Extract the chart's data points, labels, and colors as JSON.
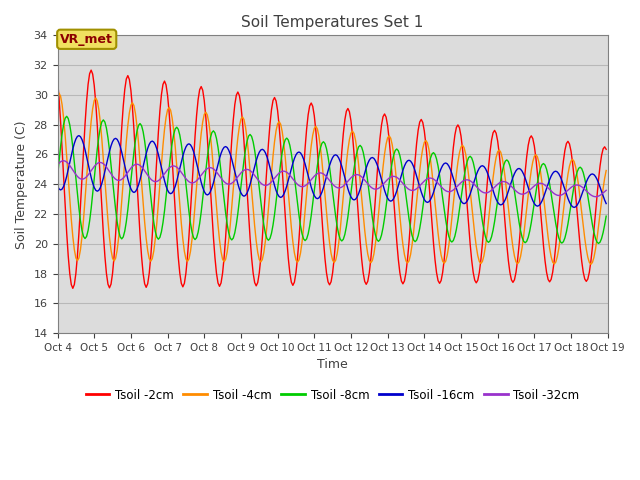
{
  "title": "Soil Temperatures Set 1",
  "xlabel": "Time",
  "ylabel": "Soil Temperature (C)",
  "ylim": [
    14,
    34
  ],
  "background_color": "#dcdcdc",
  "figure_color": "#ffffff",
  "annotation_label": "VR_met",
  "annotation_color": "#8B0000",
  "annotation_bg": "#f0e060",
  "x_tick_labels": [
    "Oct 4",
    "Oct 5",
    "Oct 6",
    "Oct 7",
    "Oct 8",
    "Oct 9",
    "Oct 10",
    "Oct 11",
    "Oct 12",
    "Oct 13",
    "Oct 14",
    "Oct 15",
    "Oct 16",
    "Oct 17",
    "Oct 18",
    "Oct 19"
  ],
  "series_colors": [
    "#ff0000",
    "#ff8c00",
    "#00cc00",
    "#0000cc",
    "#9932cc"
  ],
  "series_labels": [
    "Tsoil -2cm",
    "Tsoil -4cm",
    "Tsoil -8cm",
    "Tsoil -16cm",
    "Tsoil -32cm"
  ],
  "num_hours": 360,
  "base_temp": 24.0,
  "trend_total": -2.5,
  "depths_hours_lag": [
    0,
    3,
    8,
    16,
    30
  ],
  "depths_amp_scale": [
    1.0,
    0.75,
    0.55,
    0.25,
    0.08
  ],
  "depths_mean_start": [
    24.5,
    24.5,
    24.5,
    25.5,
    25.0
  ],
  "depths_mean_end": [
    22.0,
    22.0,
    22.5,
    23.5,
    23.5
  ]
}
